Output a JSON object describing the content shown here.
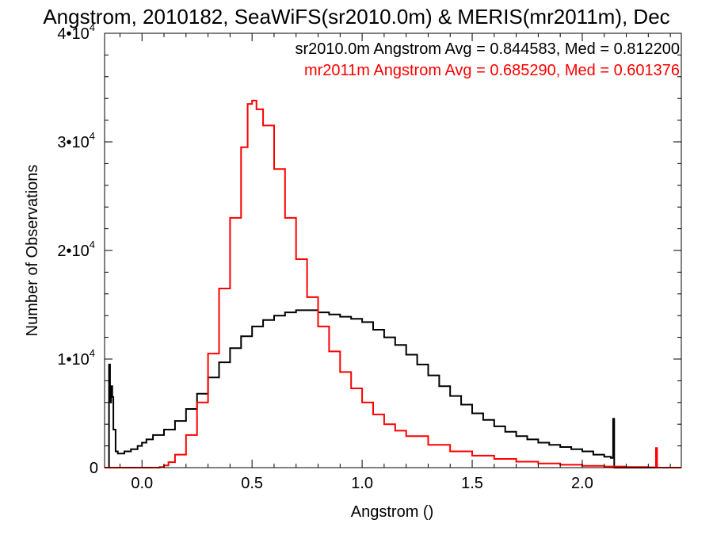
{
  "chart_data": {
    "type": "line",
    "title": "Angstrom, 2010182, SeaWiFS(sr2010.0m) & MERIS(mr2011m), Dec",
    "xlabel": "Angstrom ()",
    "ylabel": "Number of Observations",
    "xlim": [
      -0.17,
      2.45
    ],
    "ylim": [
      0,
      40000
    ],
    "x_ticks": [
      {
        "value": 0.0,
        "label": "0.0"
      },
      {
        "value": 0.5,
        "label": "0.5"
      },
      {
        "value": 1.0,
        "label": "1.0"
      },
      {
        "value": 1.5,
        "label": "1.5"
      },
      {
        "value": 2.0,
        "label": "2.0"
      }
    ],
    "y_ticks": [
      {
        "value": 0,
        "label": "0",
        "exp": ""
      },
      {
        "value": 10000,
        "label": "1•10",
        "exp": "4"
      },
      {
        "value": 20000,
        "label": "2•10",
        "exp": "4"
      },
      {
        "value": 30000,
        "label": "3•10",
        "exp": "4"
      },
      {
        "value": 40000,
        "label": "4•10",
        "exp": "4"
      }
    ],
    "annotations": [
      {
        "text": "sr2010.0m Angstrom Avg = 0.844583, Med = 0.812200",
        "color": "#000000"
      },
      {
        "text": "mr2011m Angstrom Avg = 0.685290, Med = 0.601376",
        "color": "#ff0000"
      }
    ],
    "series": [
      {
        "name": "sr2010.0m",
        "color": "#000000",
        "x": [
          -0.16,
          -0.15,
          -0.145,
          -0.14,
          -0.135,
          -0.13,
          -0.12,
          -0.11,
          -0.1,
          -0.08,
          -0.05,
          -0.02,
          0.0,
          0.02,
          0.05,
          0.1,
          0.15,
          0.2,
          0.25,
          0.3,
          0.35,
          0.4,
          0.45,
          0.5,
          0.55,
          0.6,
          0.65,
          0.7,
          0.75,
          0.8,
          0.85,
          0.9,
          0.95,
          1.0,
          1.05,
          1.1,
          1.15,
          1.2,
          1.25,
          1.3,
          1.35,
          1.4,
          1.45,
          1.5,
          1.55,
          1.6,
          1.65,
          1.7,
          1.75,
          1.8,
          1.85,
          1.9,
          1.95,
          2.0,
          2.05,
          2.1,
          2.13,
          2.14,
          2.145,
          2.15,
          2.2,
          2.3,
          2.45
        ],
        "y": [
          0,
          9500,
          6000,
          7500,
          6500,
          3500,
          1500,
          1300,
          1300,
          1500,
          1700,
          2000,
          2300,
          2600,
          3000,
          3500,
          4300,
          5400,
          6800,
          8300,
          9700,
          11000,
          12100,
          13000,
          13600,
          14000,
          14300,
          14500,
          14500,
          14300,
          14100,
          13900,
          13700,
          13400,
          12700,
          12000,
          11300,
          10400,
          9500,
          8500,
          7500,
          6600,
          5800,
          5000,
          4400,
          3800,
          3300,
          2900,
          2600,
          2300,
          2100,
          1900,
          1700,
          1500,
          1200,
          1000,
          900,
          4500,
          0,
          0,
          0,
          0,
          0
        ]
      },
      {
        "name": "mr2011m",
        "color": "#ff0000",
        "x": [
          -0.17,
          0.05,
          0.08,
          0.1,
          0.12,
          0.15,
          0.2,
          0.25,
          0.3,
          0.35,
          0.4,
          0.45,
          0.48,
          0.5,
          0.52,
          0.55,
          0.6,
          0.65,
          0.7,
          0.75,
          0.8,
          0.85,
          0.9,
          0.95,
          1.0,
          1.05,
          1.1,
          1.15,
          1.2,
          1.3,
          1.4,
          1.5,
          1.6,
          1.7,
          1.8,
          1.9,
          2.0,
          2.1,
          2.2,
          2.3,
          2.33,
          2.335,
          2.34,
          2.45
        ],
        "y": [
          0,
          0,
          50,
          200,
          500,
          1200,
          3000,
          6000,
          10500,
          16500,
          23000,
          29500,
          33500,
          33800,
          33000,
          31500,
          27500,
          23000,
          19200,
          15700,
          13000,
          10700,
          8800,
          7300,
          6000,
          4900,
          4000,
          3400,
          2900,
          2100,
          1500,
          1100,
          800,
          550,
          380,
          260,
          170,
          100,
          60,
          30,
          20,
          1800,
          0,
          0
        ]
      }
    ]
  }
}
